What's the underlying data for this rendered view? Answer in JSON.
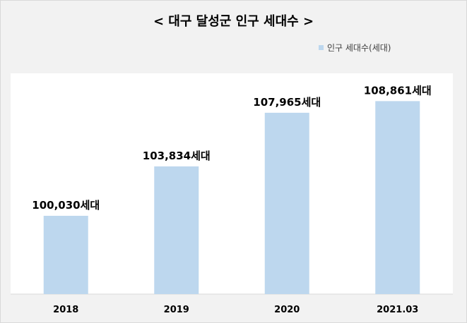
{
  "title": "< 대구 달성군 인구 세대수 >",
  "legend": {
    "label": "인구 세대수(세대)"
  },
  "colors": {
    "bar": "#bdd7ee",
    "plot_bg": "#ffffff",
    "page_bg": "#f2f2f2"
  },
  "chart_data": {
    "type": "bar",
    "title": "< 대구 달성군 인구 세대수 >",
    "categories": [
      "2018",
      "2019",
      "2020",
      "2021.03"
    ],
    "series": [
      {
        "name": "인구 세대수(세대)",
        "values": [
          100030,
          103834,
          107965,
          108861
        ],
        "labels": [
          "100,030세대",
          "103,834세대",
          "107,965세대",
          "108,861세대"
        ]
      }
    ],
    "xlabel": "",
    "ylabel": "",
    "ylim": [
      94000,
      111000
    ],
    "grid": false,
    "legend_position": "top-right"
  }
}
